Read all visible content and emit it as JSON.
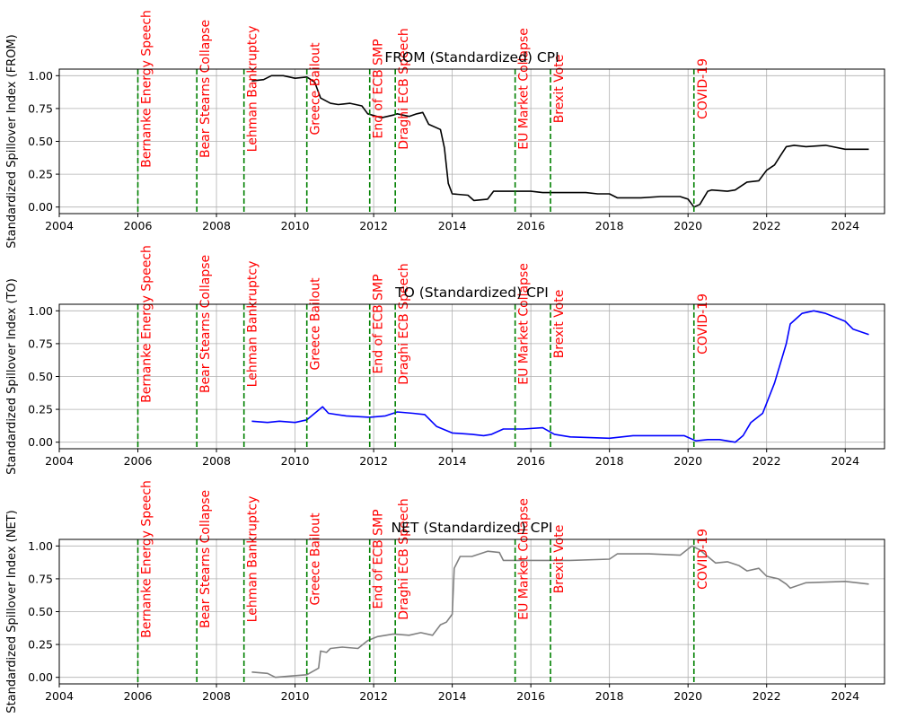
{
  "chart_data": [
    {
      "type": "line",
      "title": "FROM (Standardized) CPI",
      "ylabel": "Standardized Spillover Index (FROM)",
      "color": "#000000",
      "xlim": [
        2004,
        2025
      ],
      "ylim": [
        -0.05,
        1.05
      ],
      "x": [
        2008.9,
        2009.2,
        2009.4,
        2009.7,
        2010.0,
        2010.3,
        2010.5,
        2010.65,
        2010.9,
        2011.1,
        2011.4,
        2011.7,
        2011.85,
        2012.2,
        2012.5,
        2012.6,
        2012.9,
        2013.1,
        2013.25,
        2013.4,
        2013.7,
        2013.8,
        2013.9,
        2014.0,
        2014.4,
        2014.55,
        2014.9,
        2015.05,
        2015.6,
        2016.0,
        2016.3,
        2016.6,
        2017.0,
        2017.4,
        2017.7,
        2018.0,
        2018.2,
        2018.8,
        2019.3,
        2019.8,
        2020.0,
        2020.15,
        2020.3,
        2020.5,
        2020.6,
        2021.0,
        2021.2,
        2021.5,
        2021.8,
        2022.0,
        2022.2,
        2022.35,
        2022.5,
        2022.7,
        2023.0,
        2023.5,
        2024.0,
        2024.6
      ],
      "y": [
        0.96,
        0.97,
        1.0,
        1.0,
        0.98,
        0.99,
        0.95,
        0.83,
        0.79,
        0.78,
        0.79,
        0.77,
        0.71,
        0.68,
        0.7,
        0.71,
        0.69,
        0.71,
        0.72,
        0.63,
        0.59,
        0.45,
        0.18,
        0.1,
        0.09,
        0.05,
        0.06,
        0.12,
        0.12,
        0.12,
        0.11,
        0.11,
        0.11,
        0.11,
        0.1,
        0.1,
        0.07,
        0.07,
        0.08,
        0.08,
        0.06,
        0.0,
        0.02,
        0.12,
        0.13,
        0.12,
        0.13,
        0.19,
        0.2,
        0.28,
        0.32,
        0.39,
        0.46,
        0.47,
        0.46,
        0.47,
        0.44,
        0.44
      ]
    },
    {
      "type": "line",
      "title": "TO (Standardized) CPI",
      "ylabel": "Standardized Spillover Index (TO)",
      "color": "#0000ff",
      "xlim": [
        2004,
        2025
      ],
      "ylim": [
        -0.05,
        1.05
      ],
      "x": [
        2008.9,
        2009.3,
        2009.6,
        2010.0,
        2010.3,
        2010.7,
        2010.85,
        2011.3,
        2011.9,
        2012.3,
        2012.6,
        2013.0,
        2013.3,
        2013.6,
        2014.0,
        2014.5,
        2014.8,
        2015.0,
        2015.3,
        2015.8,
        2016.3,
        2016.6,
        2017.0,
        2018.0,
        2018.6,
        2019.3,
        2019.9,
        2020.2,
        2020.5,
        2020.8,
        2021.2,
        2021.4,
        2021.6,
        2021.9,
        2022.2,
        2022.5,
        2022.6,
        2022.9,
        2023.2,
        2023.5,
        2024.0,
        2024.2,
        2024.6
      ],
      "y": [
        0.16,
        0.15,
        0.16,
        0.15,
        0.17,
        0.27,
        0.22,
        0.2,
        0.19,
        0.2,
        0.23,
        0.22,
        0.21,
        0.12,
        0.07,
        0.06,
        0.05,
        0.06,
        0.1,
        0.1,
        0.11,
        0.06,
        0.04,
        0.03,
        0.05,
        0.05,
        0.05,
        0.01,
        0.02,
        0.02,
        0.0,
        0.05,
        0.15,
        0.22,
        0.45,
        0.75,
        0.9,
        0.98,
        1.0,
        0.98,
        0.92,
        0.86,
        0.82
      ]
    },
    {
      "type": "line",
      "title": "NET (Standardized) CPI",
      "ylabel": "Standardized Spillover Index (NET)",
      "color": "#808080",
      "xlim": [
        2004,
        2025
      ],
      "ylim": [
        -0.05,
        1.05
      ],
      "x": [
        2008.9,
        2009.3,
        2009.5,
        2009.9,
        2010.3,
        2010.6,
        2010.65,
        2010.8,
        2010.9,
        2011.2,
        2011.6,
        2011.85,
        2012.1,
        2012.5,
        2012.9,
        2013.2,
        2013.5,
        2013.7,
        2013.85,
        2014.0,
        2014.05,
        2014.2,
        2014.5,
        2014.9,
        2015.2,
        2015.3,
        2016.0,
        2016.5,
        2017.0,
        2018.0,
        2018.2,
        2019.0,
        2019.8,
        2020.1,
        2020.3,
        2020.7,
        2021.0,
        2021.3,
        2021.5,
        2021.8,
        2022.0,
        2022.3,
        2022.5,
        2022.6,
        2023.0,
        2024.0,
        2024.6
      ],
      "y": [
        0.04,
        0.03,
        0.0,
        0.01,
        0.02,
        0.07,
        0.2,
        0.19,
        0.22,
        0.23,
        0.22,
        0.28,
        0.31,
        0.33,
        0.32,
        0.34,
        0.32,
        0.4,
        0.42,
        0.48,
        0.83,
        0.92,
        0.92,
        0.96,
        0.95,
        0.89,
        0.89,
        0.89,
        0.89,
        0.9,
        0.94,
        0.94,
        0.93,
        1.0,
        0.97,
        0.87,
        0.88,
        0.85,
        0.81,
        0.83,
        0.77,
        0.75,
        0.71,
        0.68,
        0.72,
        0.73,
        0.71
      ]
    }
  ],
  "events": [
    {
      "label": "Bernanke Energy Speech",
      "year": 2006.0
    },
    {
      "label": "Bear Stearns Collapse",
      "year": 2007.5
    },
    {
      "label": "Lehman Bankruptcy",
      "year": 2008.7
    },
    {
      "label": "Greece Bailout",
      "year": 2010.3
    },
    {
      "label": "End of ECB SMP",
      "year": 2011.9
    },
    {
      "label": "Draghi ECB Speech",
      "year": 2012.55
    },
    {
      "label": "EU Market Collapse",
      "year": 2015.6
    },
    {
      "label": "Brexit Vote",
      "year": 2016.5
    },
    {
      "label": "COVID-19",
      "year": 2020.15
    }
  ],
  "event_color": "#008000",
  "x_ticks": [
    "2004",
    "2006",
    "2008",
    "2010",
    "2012",
    "2014",
    "2016",
    "2018",
    "2020",
    "2022",
    "2024"
  ],
  "y_ticks": [
    "0.00",
    "0.25",
    "0.50",
    "0.75",
    "1.00"
  ]
}
